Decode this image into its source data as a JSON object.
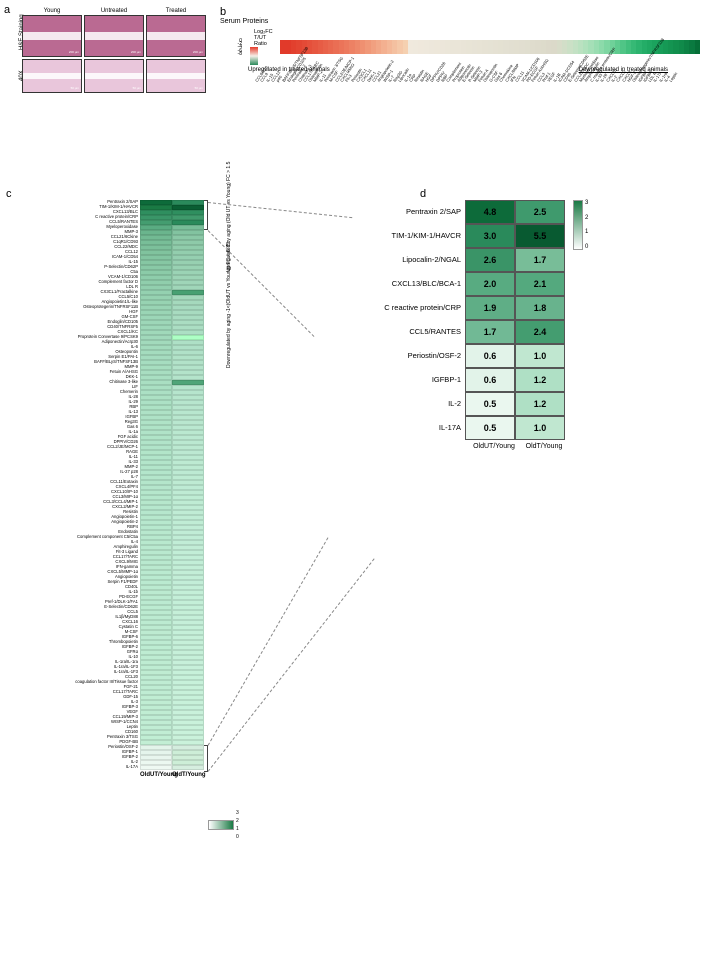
{
  "labels": {
    "a": "a",
    "b": "b",
    "c": "c",
    "d": "d"
  },
  "panel_a": {
    "row_labels": [
      "H&E Staining",
      "40X"
    ],
    "col_labels": [
      "Young",
      "Untreated",
      "Treated"
    ],
    "scale_labels": [
      "200 µm",
      "200 µm",
      "200 µm",
      "50 µm",
      "50 µm",
      "50 µm"
    ],
    "tile_bg": "#ba6a92",
    "tile_bg_bottom": "#e9c6db"
  },
  "panel_b": {
    "title": "Serum Proteins",
    "axis_title": "Log₂FC T/UT Ratio",
    "scale_ticks": [
      "0",
      "-2",
      "-4",
      "-6",
      "-8"
    ],
    "left_note": "Upregulated in treated animals",
    "right_note": "Downregulated in treated animals",
    "items": [
      {
        "l": "CCL6/C10",
        "c": "#e13a2a"
      },
      {
        "l": "CCL9",
        "c": "#e13a2a"
      },
      {
        "l": "IL-15",
        "c": "#e2402e"
      },
      {
        "l": "CCL12",
        "c": "#e34532"
      },
      {
        "l": "p40",
        "c": "#e44a36"
      },
      {
        "l": "BAFF/BLyS/TNFSF13B",
        "c": "#e5503b"
      },
      {
        "l": "Endoglin/CD105",
        "c": "#e65640"
      },
      {
        "l": "Pentraxin 2",
        "c": "#e75c45"
      },
      {
        "l": "Chitinase 3",
        "c": "#e8624a"
      },
      {
        "l": "CCL17/TARC",
        "c": "#e9684f"
      },
      {
        "l": "Osteopontin",
        "c": "#ea6e54"
      },
      {
        "l": "MMP-2",
        "c": "#eb7459"
      },
      {
        "l": "IL-11",
        "c": "#ec7a5e"
      },
      {
        "l": "Pentraxin 3/TSG",
        "c": "#ed8164"
      },
      {
        "l": "M-CSF",
        "c": "#ee886a"
      },
      {
        "l": "CCL2/JE/MCP-1",
        "c": "#ef9071"
      },
      {
        "l": "CXCL9/MIG",
        "c": "#f09878"
      },
      {
        "l": "Flt-3",
        "c": "#f1a080"
      },
      {
        "l": "Periostin",
        "c": "#f2a888"
      },
      {
        "l": "CX3CL1",
        "c": "#f3b090"
      },
      {
        "l": "CXCL11",
        "c": "#f4b898"
      },
      {
        "l": "DKK-1",
        "c": "#f4c0a0"
      },
      {
        "l": "CCL21",
        "c": "#f5c8a8"
      },
      {
        "l": "Angiopoietin-2",
        "c": "#f5d0b0"
      },
      {
        "l": "WISP-1",
        "c": "#f0e9dd"
      },
      {
        "l": "IL-7",
        "c": "#efe9dd"
      },
      {
        "l": "Reg3G",
        "c": "#efe8dc"
      },
      {
        "l": "Lipocalin",
        "c": "#eee8dc"
      },
      {
        "l": "IL-1a",
        "c": "#ede7db"
      },
      {
        "l": "CRP",
        "c": "#ede7da"
      },
      {
        "l": "Resistin",
        "c": "#ece6da"
      },
      {
        "l": "RAGE",
        "c": "#ebe6d9"
      },
      {
        "l": "HGF",
        "c": "#eae5d8"
      },
      {
        "l": "DPPIV/CD26",
        "c": "#eae5d8"
      },
      {
        "l": "DPPIV",
        "c": "#e9e4d7"
      },
      {
        "l": "RBP",
        "c": "#e8e4d6"
      },
      {
        "l": "Complement",
        "c": "#e7e3d6"
      },
      {
        "l": "Proprotein",
        "c": "#e7e3d5"
      },
      {
        "l": "Adiponectin",
        "c": "#e6e2d4"
      },
      {
        "l": "E-Selectin",
        "c": "#e5e2d4"
      },
      {
        "l": "P-Selectin",
        "c": "#e5e1d3"
      },
      {
        "l": "MMP-3",
        "c": "#e4e1d2"
      },
      {
        "l": "Fetuin A",
        "c": "#e3e0d2"
      },
      {
        "l": "Osteopontin",
        "c": "#e2dfd1"
      },
      {
        "l": "G-CSF",
        "c": "#e2dfd0"
      },
      {
        "l": "Gas 6",
        "c": "#e1ded0"
      },
      {
        "l": "Chemokine",
        "c": "#e0decf"
      },
      {
        "l": "CXCL/MMP",
        "c": "#dfdccd"
      },
      {
        "l": "IFN",
        "c": "#dedbcc"
      },
      {
        "l": "CCL11",
        "c": "#dddbcb"
      },
      {
        "l": "VCAM-1/CD106",
        "c": "#dcd9ca"
      },
      {
        "l": "PD-ECGF",
        "c": "#dbd9c9"
      },
      {
        "l": "Fetuin A/AHSG",
        "c": "#d8dcc9"
      },
      {
        "l": "CCL3",
        "c": "#d2dec8"
      },
      {
        "l": "Pref-1",
        "c": "#cbe0c6"
      },
      {
        "l": "VEGF",
        "c": "#c3e1c4"
      },
      {
        "l": "IL-1B",
        "c": "#bae1c0"
      },
      {
        "l": "ICAM-1/CD54",
        "c": "#b0e1bc"
      },
      {
        "l": "CD40",
        "c": "#a5dfb7"
      },
      {
        "l": "E-Selectin/CD62E",
        "c": "#99ddb1"
      },
      {
        "l": "CCL22/MDC",
        "c": "#8cdaaa"
      },
      {
        "l": "Myeloperoxidase",
        "c": "#7ed6a2"
      },
      {
        "l": "Amphiregulin",
        "c": "#6fd199"
      },
      {
        "l": "C reactive protein/CRP",
        "c": "#5fcb8f"
      },
      {
        "l": "IL-33",
        "c": "#50c586"
      },
      {
        "l": "IL-28",
        "c": "#42bf7d"
      },
      {
        "l": "CXCL13",
        "c": "#36b975"
      },
      {
        "l": "IL-2",
        "c": "#2cb36e"
      },
      {
        "l": "CXCL2",
        "c": "#24ad67"
      },
      {
        "l": "CXCL1",
        "c": "#1fa862"
      },
      {
        "l": "HGF-2",
        "c": "#1ba35d"
      },
      {
        "l": "Osteoprotegerin/TNFRSF11B",
        "c": "#189e59"
      },
      {
        "l": "IGFBP",
        "c": "#169955"
      },
      {
        "l": "IGFBP-1",
        "c": "#149451"
      },
      {
        "l": "LDL R",
        "c": "#128f4d"
      },
      {
        "l": "IL-17A",
        "c": "#108a4a"
      },
      {
        "l": "IL-1ra",
        "c": "#0d8245"
      },
      {
        "l": "IL-4",
        "c": "#0a7a40"
      },
      {
        "l": "Leptin",
        "c": "#066f38"
      }
    ]
  },
  "panel_c": {
    "x_headers": [
      "OldUT/Young",
      "OldT/Young"
    ],
    "side_top": "Upregulated by aging\n(Old UT vs Young) FC > 1.5",
    "side_bot": "Downregulated by aging\n-1<(OldUT vs Young) FC < 0.75",
    "legend_ticks": [
      "3",
      "2",
      "1",
      "0"
    ],
    "rows": [
      {
        "l": "Pentraxin 2/SAP",
        "a": "#0d6b3a",
        "b": "#2a8a5b"
      },
      {
        "l": "TIM-1/KIM-1/HAVCR",
        "a": "#1a7a44",
        "b": "#0a5e33"
      },
      {
        "l": "CXCL13/BLC",
        "a": "#2f8f5f",
        "b": "#2f8f5f"
      },
      {
        "l": "C reactive protein/CRP",
        "a": "#3a9668",
        "b": "#409a6c"
      },
      {
        "l": "CCL5/RANTES",
        "a": "#449d70",
        "b": "#2a8a5b"
      },
      {
        "l": "Myeloperoxidase",
        "a": "#5aac82",
        "b": "#77bd98"
      },
      {
        "l": "MMP-3",
        "a": "#6ab58d",
        "b": "#82c3a0"
      },
      {
        "l": "CCL21/6Ckine",
        "a": "#72ba93",
        "b": "#8ac8a6"
      },
      {
        "l": "C1qR1/CD93",
        "a": "#78be98",
        "b": "#8ecaa9"
      },
      {
        "l": "CCL22/MDC",
        "a": "#7cc09b",
        "b": "#90ccab"
      },
      {
        "l": "CCL12",
        "a": "#80c39e",
        "b": "#93ceae"
      },
      {
        "l": "ICAM-1/CD54",
        "a": "#83c5a1",
        "b": "#95cfb0"
      },
      {
        "l": "IL-15",
        "a": "#86c7a3",
        "b": "#97d0b1"
      },
      {
        "l": "P-Selectin/CD62P",
        "a": "#89c9a6",
        "b": "#99d2b3"
      },
      {
        "l": "C5a",
        "a": "#8bcba8",
        "b": "#9bd3b5"
      },
      {
        "l": "VCAM-1/CD106",
        "a": "#8ecdab",
        "b": "#9dd4b6"
      },
      {
        "l": "Complement factor D",
        "a": "#90ceac",
        "b": "#9fd5b8"
      },
      {
        "l": "LDL R",
        "a": "#92cfae",
        "b": "#a0d6b9"
      },
      {
        "l": "CX3CL1/Fractalkine",
        "a": "#94d1b0",
        "b": "#48a072"
      },
      {
        "l": "CCL5/C10",
        "a": "#96d2b1",
        "b": "#a3d8bb"
      },
      {
        "l": "Angiopoietin1/L-like",
        "a": "#97d3b2",
        "b": "#a5d9bd"
      },
      {
        "l": "Osteoprotegerin/TNFRSF11B",
        "a": "#99d4b4",
        "b": "#a6dabf"
      },
      {
        "l": "HGF",
        "a": "#9ad5b5",
        "b": "#a8dbc0"
      },
      {
        "l": "GM-CSF",
        "a": "#9cd6b7",
        "b": "#a9dcc1"
      },
      {
        "l": "Endoglin/CD105",
        "a": "#9dd7b8",
        "b": "#aaddc2"
      },
      {
        "l": "CD40/TNFRSF5",
        "a": "#9ed8b9",
        "b": "#abdec3"
      },
      {
        "l": "CXCL1/KC",
        "a": "#a0d9ba",
        "b": "#acdfc4"
      },
      {
        "l": "Proprotein Convertase 9/PCSK9",
        "a": "#a1d9bb",
        "b": "#adffc5"
      },
      {
        "l": "Adiponectin/Acrp30",
        "a": "#a2dabc",
        "b": "#aee0c6"
      },
      {
        "l": "IL-6",
        "a": "#a3dbbd",
        "b": "#afe0c7"
      },
      {
        "l": "Osteopontin",
        "a": "#a4dcbe",
        "b": "#b0e1c8"
      },
      {
        "l": "Serpin E1/PAI-1",
        "a": "#a5dcbf",
        "b": "#b1e2c8"
      },
      {
        "l": "BAFF/BLyS/TNFSF13B",
        "a": "#a6ddc0",
        "b": "#b2e2c9"
      },
      {
        "l": "MMP-9",
        "a": "#a7dec0",
        "b": "#b3e3ca"
      },
      {
        "l": "Fetuin A/AHSG",
        "a": "#a8dec1",
        "b": "#b3e3ca"
      },
      {
        "l": "DKK-1",
        "a": "#a9dfc2",
        "b": "#b4e4cb"
      },
      {
        "l": "Chitinase 3-like",
        "a": "#a9dfc2",
        "b": "#4fa578"
      },
      {
        "l": "LIF",
        "a": "#aae0c3",
        "b": "#b5e5cc"
      },
      {
        "l": "Chemerin",
        "a": "#abe0c4",
        "b": "#b6e5cd"
      },
      {
        "l": "IL-28",
        "a": "#ace1c4",
        "b": "#b7e6cd"
      },
      {
        "l": "IL-29",
        "a": "#ace1c5",
        "b": "#b7e6ce"
      },
      {
        "l": "RBP",
        "a": "#ade2c5",
        "b": "#b8e6ce"
      },
      {
        "l": "IL-13",
        "a": "#aee2c6",
        "b": "#b8e7cf"
      },
      {
        "l": "IGFBP",
        "a": "#aee2c6",
        "b": "#b9e7cf"
      },
      {
        "l": "Reg3G",
        "a": "#afe3c7",
        "b": "#b9e7cf"
      },
      {
        "l": "Gas 6",
        "a": "#afe3c7",
        "b": "#bae8d0"
      },
      {
        "l": "IL-1a",
        "a": "#b0e3c8",
        "b": "#bae8d0"
      },
      {
        "l": "FGF acidic",
        "a": "#b0e4c8",
        "b": "#bbe8d1"
      },
      {
        "l": "DPPIV/CD26",
        "a": "#b1e4c9",
        "b": "#bbe9d1"
      },
      {
        "l": "CCL2/JE/MCP-1",
        "a": "#b1e4c9",
        "b": "#bce9d1"
      },
      {
        "l": "RAGE",
        "a": "#b2e5c9",
        "b": "#bce9d2"
      },
      {
        "l": "IL-11",
        "a": "#b2e5ca",
        "b": "#bcead2"
      },
      {
        "l": "IL-33",
        "a": "#b3e5ca",
        "b": "#bdead2"
      },
      {
        "l": "MMP-2",
        "a": "#b3e5ca",
        "b": "#bdead2"
      },
      {
        "l": "IL-27 p28",
        "a": "#b3e6cb",
        "b": "#bdead3"
      },
      {
        "l": "IL-7",
        "a": "#b4e6cb",
        "b": "#beebd3"
      },
      {
        "l": "CCL11/Eotaxin",
        "a": "#b4e6cb",
        "b": "#beebd3"
      },
      {
        "l": "CXCL4/PF4",
        "a": "#b5e6cc",
        "b": "#beebd4"
      },
      {
        "l": "CXCL10/IP-10",
        "a": "#b5e7cc",
        "b": "#bfebd4"
      },
      {
        "l": "CCL3/MIP-1α",
        "a": "#b5e7cc",
        "b": "#bfecd4"
      },
      {
        "l": "CCL3/CCL4/MIP-1",
        "a": "#b6e7cc",
        "b": "#bfecd4"
      },
      {
        "l": "CXCL2/MIP-2",
        "a": "#b6e7cd",
        "b": "#c0ecd5"
      },
      {
        "l": "Resistin",
        "a": "#b6e7cd",
        "b": "#c0ecd5"
      },
      {
        "l": "Angiopoietin-1",
        "a": "#b7e8cd",
        "b": "#c0ecd5"
      },
      {
        "l": "Angiopoietin-2",
        "a": "#b7e8ce",
        "b": "#c0edd5"
      },
      {
        "l": "RBP4",
        "a": "#b7e8ce",
        "b": "#c1edd6"
      },
      {
        "l": "Endostatin",
        "a": "#b8e8ce",
        "b": "#c1edd6"
      },
      {
        "l": "Complement component C5/C5a",
        "a": "#b8e8ce",
        "b": "#c1edd6"
      },
      {
        "l": "IL-4",
        "a": "#b8e9ce",
        "b": "#c1edd6"
      },
      {
        "l": "Amphiregulin",
        "a": "#b9e9cf",
        "b": "#c2edd6"
      },
      {
        "l": "Fit-3 Ligand",
        "a": "#b9e9cf",
        "b": "#c2eed7"
      },
      {
        "l": "CCL17/TARC",
        "a": "#b9e9cf",
        "b": "#c2eed7"
      },
      {
        "l": "CXCL9/MIG",
        "a": "#b9e9cf",
        "b": "#c2eed7"
      },
      {
        "l": "IFN-gamma",
        "a": "#bae9cf",
        "b": "#c3eed7"
      },
      {
        "l": "CXCL5/MMP-1α",
        "a": "#baead0",
        "b": "#c3eed7"
      },
      {
        "l": "Angiopoietin",
        "a": "#baead0",
        "b": "#c3eed7"
      },
      {
        "l": "Serpin F1/PEDF",
        "a": "#baead0",
        "b": "#c3eed8"
      },
      {
        "l": "CD40L",
        "a": "#bbead0",
        "b": "#c4efd8"
      },
      {
        "l": "IL-1b",
        "a": "#bbead0",
        "b": "#c4efd8"
      },
      {
        "l": "PD-ECGF",
        "a": "#bbead0",
        "b": "#c4efd8"
      },
      {
        "l": "Pref-1/DLK-1/FA1",
        "a": "#bbead1",
        "b": "#c4efd8"
      },
      {
        "l": "E-Selectin/CD62E",
        "a": "#bcebd1",
        "b": "#c4efd8"
      },
      {
        "l": "CCL5",
        "a": "#bcebd1",
        "b": "#c5efd8"
      },
      {
        "l": "IL1β/MyD88",
        "a": "#bcebd1",
        "b": "#c5efd9"
      },
      {
        "l": "CXCL16",
        "a": "#bcebd1",
        "b": "#c5efd9"
      },
      {
        "l": "Cystatin C",
        "a": "#bdebd1",
        "b": "#c5f0d9"
      },
      {
        "l": "M-CSF",
        "a": "#bdebd1",
        "b": "#c5f0d9"
      },
      {
        "l": "IGFBP-6",
        "a": "#bdebd2",
        "b": "#c6f0d9"
      },
      {
        "l": "Thrombopoietin",
        "a": "#bdebd2",
        "b": "#c6f0d9"
      },
      {
        "l": "IGFBP-2",
        "a": "#bdecd2",
        "b": "#c6f0d9"
      },
      {
        "l": "GFRα",
        "a": "#beecd2",
        "b": "#c6f0d9"
      },
      {
        "l": "IL-10",
        "a": "#beecd2",
        "b": "#c6f0d9"
      },
      {
        "l": "IL-1ra/IL-1ra",
        "a": "#beecd2",
        "b": "#c7f0da"
      },
      {
        "l": "IL-1ra/IL-1F3",
        "a": "#beecd2",
        "b": "#c7f0da"
      },
      {
        "l": "IL-1ra/IL-1F3 ",
        "a": "#bfecd2",
        "b": "#c7f1da"
      },
      {
        "l": "CCL20",
        "a": "#bfecd3",
        "b": "#c7f1da"
      },
      {
        "l": "coagulation factor III/Tissue factor",
        "a": "#bfecd3",
        "b": "#c7f1da"
      },
      {
        "l": "FGF-21",
        "a": "#bfecd3",
        "b": "#c8f1da"
      },
      {
        "l": "CCL17/TARC ",
        "a": "#bfecd3",
        "b": "#c8f1da"
      },
      {
        "l": "GDF-15",
        "a": "#c0edd3",
        "b": "#c8f1da"
      },
      {
        "l": "IL-3",
        "a": "#c0edd3",
        "b": "#c8f1da"
      },
      {
        "l": "IGFBP-3",
        "a": "#c0edd3",
        "b": "#c8f1db"
      },
      {
        "l": "VEGF",
        "a": "#c0edd3",
        "b": "#c9f1db"
      },
      {
        "l": "CCL19/MIP-3",
        "a": "#c0edd4",
        "b": "#c9f1db"
      },
      {
        "l": "WISP-1/CCN4",
        "a": "#c1edd4",
        "b": "#c9f2db"
      },
      {
        "l": "Leptin",
        "a": "#c1edd4",
        "b": "#c9f2db"
      },
      {
        "l": "CD160",
        "a": "#c1edd4",
        "b": "#c9f2db"
      },
      {
        "l": "Pentraxin 3/TSG",
        "a": "#c1eed4",
        "b": "#caf2db"
      },
      {
        "l": "PDGF-BB",
        "a": "#c2eed4",
        "b": "#caf2db"
      },
      {
        "l": "Periostin/OSF-2",
        "a": "#e3f4ea",
        "b": "#d4edde"
      },
      {
        "l": "IGFBP-1",
        "a": "#e5f5ec",
        "b": "#cdeed7"
      },
      {
        "l": "IGFBP-2 ",
        "a": "#e8f6ee",
        "b": "#d0efd9"
      },
      {
        "l": "IL-2",
        "a": "#ecf8f1",
        "b": "#cdeed7"
      },
      {
        "l": "IL-17A",
        "a": "#eff9f3",
        "b": "#d6eedf"
      }
    ]
  },
  "panel_d": {
    "x_headers": [
      "OldUT/Young",
      "OldT/Young"
    ],
    "legend_ticks": [
      "3",
      "2",
      "1",
      "0"
    ],
    "rows": [
      {
        "l": "Pentraxin 2/SAP",
        "a": "4.8",
        "b": "2.5",
        "ca": "#0d6b3a",
        "cb": "#3f9a6d"
      },
      {
        "l": "TIM-1/KIM-1/HAVCR",
        "a": "3.0",
        "b": "5.5",
        "ca": "#2a8a5b",
        "cb": "#085a31"
      },
      {
        "l": "Lipocalin-2/NGAL",
        "a": "2.6",
        "b": "1.7",
        "ca": "#3a9467",
        "cb": "#78bd98"
      },
      {
        "l": "CXCL13/BLC/BCA-1",
        "a": "2.0",
        "b": "2.1",
        "ca": "#58ab81",
        "cb": "#54a97e"
      },
      {
        "l": "C reactive protein/CRP",
        "a": "1.9",
        "b": "1.8",
        "ca": "#5fae86",
        "cb": "#68b38d"
      },
      {
        "l": "CCL5/RANTES",
        "a": "1.7",
        "b": "2.4",
        "ca": "#71b995",
        "cb": "#449d70"
      },
      {
        "l": "Periostin/OSF-2",
        "a": "0.6",
        "b": "1.0",
        "ca": "#e2f3e9",
        "cb": "#c0e7d0"
      },
      {
        "l": "IGFBP-1",
        "a": "0.6",
        "b": "1.2",
        "ca": "#e2f3e9",
        "cb": "#afe0c5"
      },
      {
        "l": "IL-2",
        "a": "0.5",
        "b": "1.2",
        "ca": "#eaf7ef",
        "cb": "#afe0c5"
      },
      {
        "l": "IL-17A",
        "a": "0.5",
        "b": "1.0",
        "ca": "#eaf7ef",
        "cb": "#c0e7d0"
      }
    ]
  }
}
